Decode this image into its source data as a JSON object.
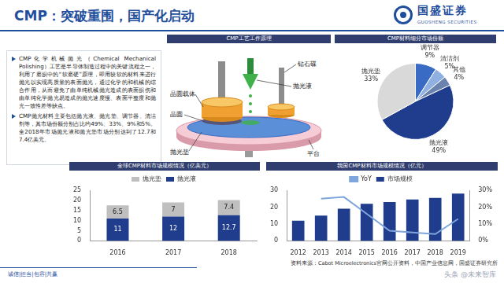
{
  "header": {
    "title": "CMP：突破重围，国产化启动",
    "logo_cn": "国盛证券",
    "logo_en": "GUOSHENG SECURITIES"
  },
  "text_box": {
    "bullets": [
      "CMP化学机械抛光（Chemical Mechanical Polishing）工艺是半导体制造过程中的关键流程之一，利用了磨损中的“软磨硬”原理，即用较软的材料来进行抛光以实现高质量的表面抛光，通过化学的和机械的综合作用，从而避免了由单纯机械抛光造成的表面损伤和由单纯化学抛光易造成的抛光速度慢、表面平整度和抛光一致性差等缺点。",
      "CMP抛光材料主要包括抛光液、抛光垫、调节器、清洁剂等，其市场份额分别占比约49%、33%、9%和5%。全2018年市场抛光液和抛光垫市场分别达到了12.7和7.4亿美元。"
    ]
  },
  "diagram": {
    "title": "CMP工艺工作原理",
    "labels": {
      "carrier": "晶圆载体",
      "wafer": "晶圆",
      "pad": "抛光垫",
      "slurry": "抛光液",
      "diamond": "钻石碟",
      "platen": "平台"
    }
  },
  "chart_data": [
    {
      "type": "pie",
      "title": "CMP材料细分市场份额",
      "categories": [
        "调节器",
        "清洁剂",
        "其他",
        "抛光液",
        "抛光垫"
      ],
      "values": [
        9,
        5,
        4,
        49,
        33
      ],
      "value_labels": [
        "9%",
        "5%",
        "4%",
        "49%",
        "33%"
      ],
      "colors": [
        "#3a6bc4",
        "#8fb0e0",
        "#6a82ad",
        "#1f3d8c",
        "#d9d9d9"
      ],
      "data_labels": true
    },
    {
      "type": "bar",
      "title": "全球CMP材料市场规模情况（亿美元）",
      "categories": [
        "2016",
        "2017",
        "2018"
      ],
      "stacked": true,
      "data_labels": true,
      "grid": false,
      "legend": "top",
      "ylim": [
        0,
        25
      ],
      "yticks": [
        0,
        5,
        10,
        15,
        20,
        25
      ],
      "series": [
        {
          "name": "抛光液",
          "color": "#1f3d8c",
          "values": [
            11,
            12,
            12.7
          ]
        },
        {
          "name": "抛光垫",
          "color": "#bfbfbf",
          "values": [
            6.5,
            7,
            7.4
          ]
        }
      ]
    },
    {
      "type": "bar",
      "title": "我国CMP材料市场规模情况（亿元）",
      "categories": [
        "2012",
        "2013",
        "2014",
        "2015",
        "2016",
        "2017",
        "2018",
        "2019"
      ],
      "grid": false,
      "legend": "top",
      "ylim": [
        0,
        30
      ],
      "yticks": [
        0,
        10,
        20,
        30
      ],
      "y2lim": [
        0,
        30
      ],
      "y2ticks": [
        {
          "value": 0,
          "label": "0%"
        },
        {
          "value": 10,
          "label": "10%"
        },
        {
          "value": 20,
          "label": "20%"
        },
        {
          "value": 30,
          "label": "30%"
        }
      ],
      "series": [
        {
          "name": "市场规模",
          "type": "bar",
          "color": "#1f3d8c",
          "values": [
            12,
            15,
            19,
            22,
            23,
            24.5,
            25.5,
            28
          ]
        },
        {
          "name": "YoY",
          "type": "line",
          "color": "#7fa6dc",
          "axis": "y2",
          "marker": "none",
          "line_style": "solid",
          "values": [
            null,
            25,
            26,
            16,
            6,
            5,
            4,
            13
          ]
        }
      ]
    }
  ],
  "footer": {
    "motto": "诚信|担当|包容|共赢",
    "source": "资料来源：Cabot Microelectronics官网公开资料，中国产业信息网，国盛证券研究所"
  },
  "watermark": "头条 @未来智库"
}
